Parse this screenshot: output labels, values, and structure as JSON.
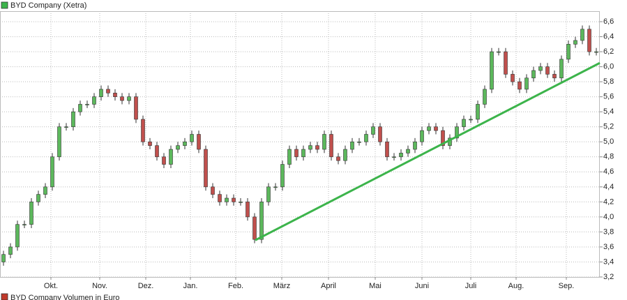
{
  "chart_data": {
    "type": "candlestick",
    "legend": "BYD Company (Xetra)",
    "legend_color": "#3cb44b",
    "volume_legend": "BYD Company Volumen in Euro",
    "volume_legend_color": "#c0392b",
    "up_color": "#5cb85c",
    "down_color": "#c0504d",
    "grid": true,
    "xlim": [
      0,
      86
    ],
    "ylim": [
      3.2,
      6.74
    ],
    "xticks": [
      {
        "value": 7.3,
        "label": "Okt."
      },
      {
        "value": 14.3,
        "label": "Nov."
      },
      {
        "value": 20.9,
        "label": "Dez."
      },
      {
        "value": 27.3,
        "label": "Jan."
      },
      {
        "value": 33.8,
        "label": "Feb."
      },
      {
        "value": 40.4,
        "label": "März"
      },
      {
        "value": 47.1,
        "label": "April"
      },
      {
        "value": 53.8,
        "label": "Mai"
      },
      {
        "value": 60.5,
        "label": "Juni"
      },
      {
        "value": 67.5,
        "label": "Juli"
      },
      {
        "value": 74,
        "label": "Aug."
      },
      {
        "value": 81.2,
        "label": "Sep."
      }
    ],
    "yticks": [
      {
        "value": 3.2,
        "label": "3,2"
      },
      {
        "value": 3.4,
        "label": "3,4"
      },
      {
        "value": 3.6,
        "label": "3,6"
      },
      {
        "value": 3.8,
        "label": "3,8"
      },
      {
        "value": 4.0,
        "label": "4,0"
      },
      {
        "value": 4.2,
        "label": "4,2"
      },
      {
        "value": 4.4,
        "label": "4,4"
      },
      {
        "value": 4.6,
        "label": "4,6"
      },
      {
        "value": 4.8,
        "label": "4,8"
      },
      {
        "value": 5.0,
        "label": "5,0"
      },
      {
        "value": 5.2,
        "label": "5,2"
      },
      {
        "value": 5.4,
        "label": "5,4"
      },
      {
        "value": 5.6,
        "label": "5,6"
      },
      {
        "value": 5.8,
        "label": "5,8"
      },
      {
        "value": 6.0,
        "label": "6,0"
      },
      {
        "value": 6.2,
        "label": "6,2"
      },
      {
        "value": 6.4,
        "label": "6,4"
      },
      {
        "value": 6.6,
        "label": "6,6"
      }
    ],
    "x": [
      0.5,
      1.5,
      2.5,
      3.5,
      4.5,
      5.5,
      6.5,
      7.5,
      8.5,
      9.5,
      10.5,
      11.5,
      12.5,
      13.5,
      14.5,
      15.5,
      16.5,
      17.5,
      18.5,
      19.5,
      20.5,
      21.5,
      22.5,
      23.5,
      24.5,
      25.5,
      26.5,
      27.5,
      28.5,
      29.5,
      30.5,
      31.5,
      32.5,
      33.5,
      34.5,
      35.5,
      36.5,
      37.5,
      38.5,
      39.5,
      40.5,
      41.5,
      42.5,
      43.5,
      44.5,
      45.5,
      46.5,
      47.5,
      48.5,
      49.5,
      50.5,
      51.5,
      52.5,
      53.5,
      54.5,
      55.5,
      56.5,
      57.5,
      58.5,
      59.5,
      60.5,
      61.5,
      62.5,
      63.5,
      64.5,
      65.5,
      66.5,
      67.5,
      68.5,
      69.5,
      70.5,
      71.5,
      72.5,
      73.5,
      74.5,
      75.5,
      76.5,
      77.5,
      78.5,
      79.5,
      80.5,
      81.5,
      82.5,
      83.5,
      84.5,
      85.5
    ],
    "open": [
      3.4,
      3.5,
      3.6,
      3.9,
      3.9,
      4.2,
      4.3,
      4.4,
      4.8,
      5.2,
      5.2,
      5.4,
      5.5,
      5.5,
      5.6,
      5.7,
      5.65,
      5.6,
      5.55,
      5.6,
      5.3,
      5.0,
      4.95,
      4.8,
      4.7,
      4.9,
      4.95,
      5.0,
      5.1,
      4.9,
      4.4,
      4.3,
      4.2,
      4.25,
      4.2,
      4.2,
      4.0,
      3.7,
      4.2,
      4.4,
      4.4,
      4.7,
      4.9,
      4.8,
      4.9,
      4.95,
      4.9,
      5.1,
      4.8,
      4.75,
      4.9,
      5.0,
      5.0,
      5.1,
      5.2,
      5.0,
      4.8,
      4.8,
      4.85,
      4.9,
      5.0,
      5.15,
      5.2,
      5.15,
      4.95,
      5.05,
      5.2,
      5.3,
      5.3,
      5.5,
      5.7,
      6.2,
      6.2,
      5.9,
      5.8,
      5.7,
      5.85,
      5.95,
      6.0,
      5.9,
      5.85,
      6.1,
      6.3,
      6.35,
      6.5,
      6.2
    ],
    "high": [
      3.55,
      3.65,
      3.95,
      3.95,
      4.25,
      4.35,
      4.45,
      4.85,
      5.25,
      5.25,
      5.45,
      5.55,
      5.55,
      5.65,
      5.75,
      5.75,
      5.7,
      5.65,
      5.65,
      5.65,
      5.35,
      5.05,
      5.0,
      4.85,
      4.95,
      5.0,
      5.05,
      5.15,
      5.15,
      4.95,
      4.45,
      4.35,
      4.3,
      4.3,
      4.25,
      4.25,
      4.05,
      4.25,
      4.45,
      4.45,
      4.75,
      4.95,
      4.95,
      4.95,
      5.0,
      5.0,
      5.15,
      5.15,
      4.85,
      4.95,
      5.05,
      5.05,
      5.15,
      5.25,
      5.25,
      5.05,
      4.85,
      4.9,
      4.95,
      5.05,
      5.2,
      5.25,
      5.25,
      5.2,
      5.1,
      5.25,
      5.35,
      5.35,
      5.55,
      5.75,
      6.25,
      6.25,
      6.25,
      5.95,
      5.85,
      5.9,
      6.0,
      6.05,
      6.05,
      5.95,
      6.15,
      6.35,
      6.4,
      6.55,
      6.55,
      6.25
    ],
    "low": [
      3.35,
      3.45,
      3.55,
      3.85,
      3.85,
      4.15,
      4.25,
      4.35,
      4.75,
      5.15,
      5.15,
      5.35,
      5.45,
      5.45,
      5.55,
      5.6,
      5.55,
      5.5,
      5.5,
      5.25,
      4.95,
      4.9,
      4.75,
      4.65,
      4.65,
      4.85,
      4.9,
      4.95,
      4.85,
      4.35,
      4.25,
      4.15,
      4.15,
      4.15,
      4.15,
      3.95,
      3.65,
      3.65,
      4.15,
      4.35,
      4.35,
      4.65,
      4.75,
      4.75,
      4.85,
      4.85,
      4.85,
      4.75,
      4.7,
      4.7,
      4.85,
      4.95,
      4.95,
      5.05,
      4.95,
      4.75,
      4.75,
      4.75,
      4.8,
      4.85,
      4.95,
      5.1,
      5.1,
      4.9,
      4.9,
      5.0,
      5.15,
      5.25,
      5.25,
      5.45,
      5.65,
      6.15,
      5.85,
      5.75,
      5.65,
      5.65,
      5.8,
      5.9,
      5.85,
      5.8,
      5.8,
      6.05,
      6.25,
      6.3,
      6.15,
      6.15
    ],
    "close": [
      3.5,
      3.6,
      3.9,
      3.9,
      4.2,
      4.3,
      4.4,
      4.8,
      5.2,
      5.2,
      5.4,
      5.5,
      5.5,
      5.6,
      5.7,
      5.65,
      5.6,
      5.55,
      5.6,
      5.3,
      5.0,
      4.95,
      4.8,
      4.7,
      4.9,
      4.95,
      5.0,
      5.1,
      4.9,
      4.4,
      4.3,
      4.2,
      4.25,
      4.2,
      4.2,
      4.0,
      3.7,
      4.2,
      4.4,
      4.4,
      4.7,
      4.9,
      4.8,
      4.9,
      4.95,
      4.9,
      5.1,
      4.8,
      4.75,
      4.9,
      5.0,
      5.0,
      5.1,
      5.2,
      5.0,
      4.8,
      4.8,
      4.85,
      4.9,
      5.0,
      5.15,
      5.2,
      5.15,
      4.95,
      5.05,
      5.2,
      5.3,
      5.3,
      5.5,
      5.7,
      6.2,
      6.2,
      5.9,
      5.8,
      5.7,
      5.85,
      5.95,
      6.0,
      5.9,
      5.85,
      6.1,
      6.3,
      6.35,
      6.5,
      6.2,
      6.2
    ],
    "trendline": {
      "x": [
        36.6,
        86
      ],
      "y": [
        3.69,
        6.05
      ],
      "color": "#3cb44b"
    }
  }
}
